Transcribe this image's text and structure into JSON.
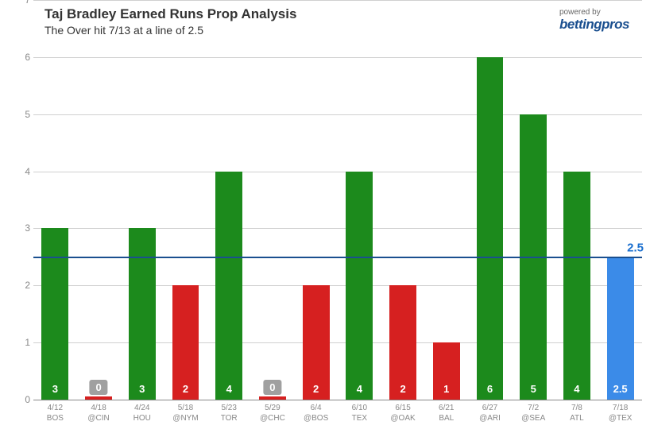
{
  "title": "Taj Bradley Earned Runs Prop Analysis",
  "subtitle": "The Over hit 7/13 at a line of 2.5",
  "brand_small": "powered by",
  "brand_large": "bettingpros",
  "chart": {
    "type": "bar",
    "ylim": [
      0,
      7
    ],
    "ytick_step": 1,
    "ref_line": 2.5,
    "ref_label": "2.5",
    "colors": {
      "over": "#1c8a1c",
      "under": "#d62020",
      "current": "#3b8be8",
      "zero_pill": "#a0a0a0",
      "grid": "#d0d0d0",
      "ref": "#1a4f8f",
      "axis_text": "#888888"
    },
    "bar_width_ratio": 0.62,
    "bars": [
      {
        "date": "4/12",
        "team": "BOS",
        "value": 3,
        "label": "3",
        "color": "#1c8a1c",
        "is_zero": false
      },
      {
        "date": "4/18",
        "team": "@CIN",
        "value": 0.05,
        "label": "0",
        "color": "#d62020",
        "is_zero": true
      },
      {
        "date": "4/24",
        "team": "HOU",
        "value": 3,
        "label": "3",
        "color": "#1c8a1c",
        "is_zero": false
      },
      {
        "date": "5/18",
        "team": "@NYM",
        "value": 2,
        "label": "2",
        "color": "#d62020",
        "is_zero": false
      },
      {
        "date": "5/23",
        "team": "TOR",
        "value": 4,
        "label": "4",
        "color": "#1c8a1c",
        "is_zero": false
      },
      {
        "date": "5/29",
        "team": "@CHC",
        "value": 0.05,
        "label": "0",
        "color": "#d62020",
        "is_zero": true
      },
      {
        "date": "6/4",
        "team": "@BOS",
        "value": 2,
        "label": "2",
        "color": "#d62020",
        "is_zero": false
      },
      {
        "date": "6/10",
        "team": "TEX",
        "value": 4,
        "label": "4",
        "color": "#1c8a1c",
        "is_zero": false
      },
      {
        "date": "6/15",
        "team": "@OAK",
        "value": 2,
        "label": "2",
        "color": "#d62020",
        "is_zero": false
      },
      {
        "date": "6/21",
        "team": "BAL",
        "value": 1,
        "label": "1",
        "color": "#d62020",
        "is_zero": false
      },
      {
        "date": "6/27",
        "team": "@ARI",
        "value": 6,
        "label": "6",
        "color": "#1c8a1c",
        "is_zero": false
      },
      {
        "date": "7/2",
        "team": "@SEA",
        "value": 5,
        "label": "5",
        "color": "#1c8a1c",
        "is_zero": false
      },
      {
        "date": "7/8",
        "team": "ATL",
        "value": 4,
        "label": "4",
        "color": "#1c8a1c",
        "is_zero": false
      },
      {
        "date": "7/18",
        "team": "@TEX",
        "value": 2.5,
        "label": "2.5",
        "color": "#3b8be8",
        "is_zero": false
      }
    ]
  }
}
